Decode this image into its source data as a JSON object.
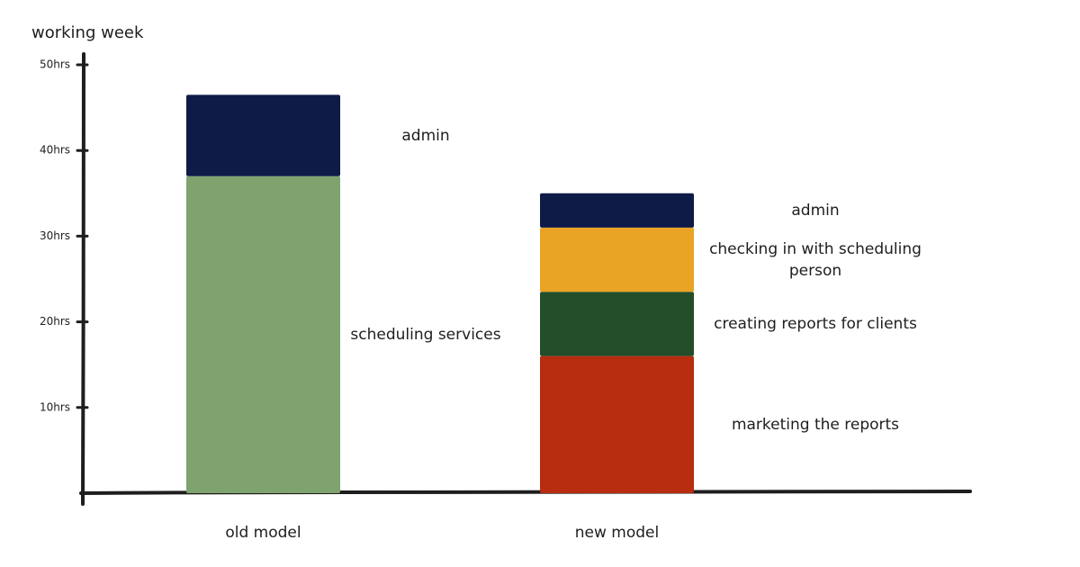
{
  "chart_data": {
    "type": "bar",
    "stacked": true,
    "title": "working week",
    "categories": [
      "old model",
      "new model"
    ],
    "series": [
      {
        "name": "scheduling services",
        "color": "#7fa36e",
        "values": [
          37,
          null
        ]
      },
      {
        "name": "marketing the reports",
        "color": "#b82c10",
        "values": [
          null,
          16
        ]
      },
      {
        "name": "creating reports for clients",
        "color": "#244d2a",
        "values": [
          null,
          7.5
        ]
      },
      {
        "name": "checking in with scheduling person",
        "color": "#e9a325",
        "values": [
          null,
          7.5
        ]
      },
      {
        "name": "admin",
        "color": "#0e1b47",
        "values": [
          9.5,
          4
        ]
      }
    ],
    "ylim": [
      0,
      50
    ],
    "yticks": [
      {
        "value": 10,
        "label": "10hrs"
      },
      {
        "value": 20,
        "label": "20hrs"
      },
      {
        "value": 30,
        "label": "30hrs"
      },
      {
        "value": 40,
        "label": "40hrs"
      },
      {
        "value": 50,
        "label": "50hrs"
      }
    ]
  }
}
